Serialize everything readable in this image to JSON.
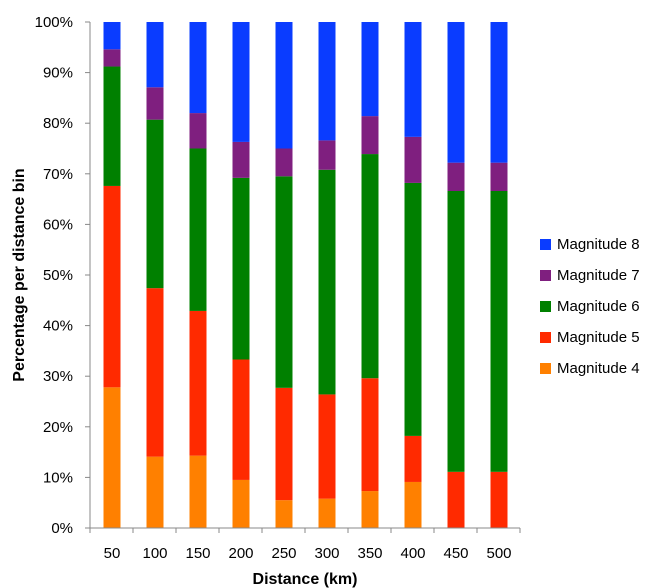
{
  "chart_data": {
    "type": "bar",
    "stacked": true,
    "categories": [
      "50",
      "100",
      "150",
      "200",
      "250",
      "300",
      "350",
      "400",
      "450",
      "500"
    ],
    "series": [
      {
        "name": "Magnitude 4",
        "color": "#FF8000",
        "values": [
          27.8,
          14.1,
          14.3,
          9.5,
          5.5,
          5.8,
          7.3,
          9.1,
          0.0,
          0.0
        ]
      },
      {
        "name": "Magnitude 5",
        "color": "#FF2A00",
        "values": [
          39.8,
          33.3,
          28.6,
          23.8,
          22.2,
          20.6,
          22.3,
          9.1,
          11.1,
          11.1
        ]
      },
      {
        "name": "Magnitude 6",
        "color": "#008000",
        "values": [
          23.6,
          33.3,
          32.1,
          35.9,
          41.8,
          44.4,
          44.3,
          50.0,
          55.5,
          55.5
        ]
      },
      {
        "name": "Magnitude 7",
        "color": "#7F1F7F",
        "values": [
          3.4,
          6.4,
          7.0,
          7.1,
          5.5,
          5.8,
          7.5,
          9.1,
          5.6,
          5.6
        ]
      },
      {
        "name": "Magnitude 8",
        "color": "#0A3CFF",
        "values": [
          5.4,
          12.9,
          18.0,
          23.7,
          25.0,
          23.4,
          18.6,
          22.7,
          27.8,
          27.8
        ]
      }
    ],
    "yticks": [
      "0%",
      "10%",
      "20%",
      "30%",
      "40%",
      "50%",
      "60%",
      "70%",
      "80%",
      "90%",
      "100%"
    ],
    "ylim": [
      0,
      100
    ],
    "xlabel": "Distance (km)",
    "ylabel": "Percentage per distance bin",
    "grid": false,
    "legend_position": "right"
  }
}
